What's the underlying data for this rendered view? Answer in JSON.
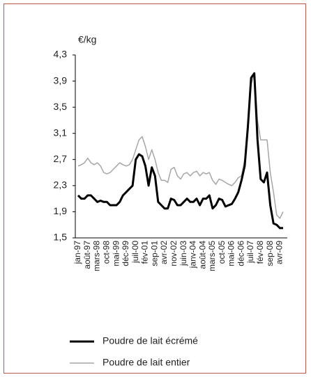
{
  "chart_data": {
    "type": "line",
    "y_label": "€/kg",
    "categories": [
      "jan-97",
      null,
      null,
      "août-97",
      null,
      null,
      "mars-98",
      null,
      null,
      "oct-98",
      null,
      null,
      "mai-99",
      null,
      null,
      "déc-99",
      null,
      null,
      "juil-00",
      null,
      null,
      "fév-01",
      null,
      null,
      "sep-01",
      null,
      null,
      "avr-02",
      null,
      null,
      "nov-02",
      null,
      null,
      "juin-03",
      null,
      null,
      "janv-04",
      null,
      null,
      "août-04",
      null,
      null,
      "mars-05",
      null,
      null,
      "oct-05",
      null,
      null,
      "mai-06",
      null,
      null,
      "déc-06",
      null,
      null,
      "juil-07",
      null,
      null,
      "fév-08",
      null,
      null,
      "sep-08",
      null,
      null,
      "avr-09",
      null
    ],
    "series": [
      {
        "name": "Poudre de lait écrémé",
        "color": "#000000",
        "width": 3,
        "values": [
          2.15,
          2.1,
          2.1,
          2.15,
          2.15,
          2.1,
          2.05,
          2.07,
          2.05,
          2.05,
          2.0,
          2.0,
          2.0,
          2.05,
          2.15,
          2.2,
          2.25,
          2.3,
          2.7,
          2.78,
          2.75,
          2.6,
          2.3,
          2.58,
          2.45,
          2.05,
          2.0,
          1.95,
          1.95,
          2.1,
          2.08,
          2.0,
          2.0,
          2.05,
          2.1,
          2.05,
          2.05,
          2.1,
          2.0,
          2.1,
          2.1,
          2.15,
          1.95,
          2.0,
          2.1,
          2.08,
          1.98,
          2.0,
          2.02,
          2.1,
          2.2,
          2.38,
          2.6,
          3.2,
          3.95,
          4.02,
          3.0,
          2.4,
          2.35,
          2.5,
          2.0,
          1.72,
          1.7,
          1.65,
          1.65
        ]
      },
      {
        "name": "Poudre de lait entier",
        "color": "#a6a6a6",
        "width": 1.5,
        "values": [
          2.6,
          2.62,
          2.65,
          2.72,
          2.65,
          2.62,
          2.65,
          2.6,
          2.5,
          2.48,
          2.5,
          2.55,
          2.6,
          2.65,
          2.62,
          2.6,
          2.62,
          2.7,
          2.85,
          3.0,
          3.05,
          2.9,
          2.7,
          2.85,
          2.7,
          2.5,
          2.38,
          2.38,
          2.35,
          2.55,
          2.58,
          2.45,
          2.4,
          2.48,
          2.5,
          2.45,
          2.5,
          2.52,
          2.45,
          2.5,
          2.48,
          2.5,
          2.38,
          2.32,
          2.4,
          2.38,
          2.35,
          2.32,
          2.3,
          2.35,
          2.42,
          2.45,
          2.7,
          3.3,
          3.85,
          4.02,
          3.3,
          3.0,
          3.0,
          3.0,
          2.5,
          2.2,
          1.85,
          1.8,
          1.9
        ]
      }
    ],
    "ylim": [
      1.5,
      4.3
    ],
    "yticks": [
      {
        "value": 1.5,
        "label": "1,5"
      },
      {
        "value": 1.9,
        "label": "1,9"
      },
      {
        "value": 2.3,
        "label": "2,3"
      },
      {
        "value": 2.7,
        "label": "2,7"
      },
      {
        "value": 3.1,
        "label": "3,1"
      },
      {
        "value": 3.5,
        "label": "3,5"
      },
      {
        "value": 3.9,
        "label": "3,9"
      },
      {
        "value": 4.3,
        "label": "4,3"
      }
    ],
    "grid": false
  }
}
